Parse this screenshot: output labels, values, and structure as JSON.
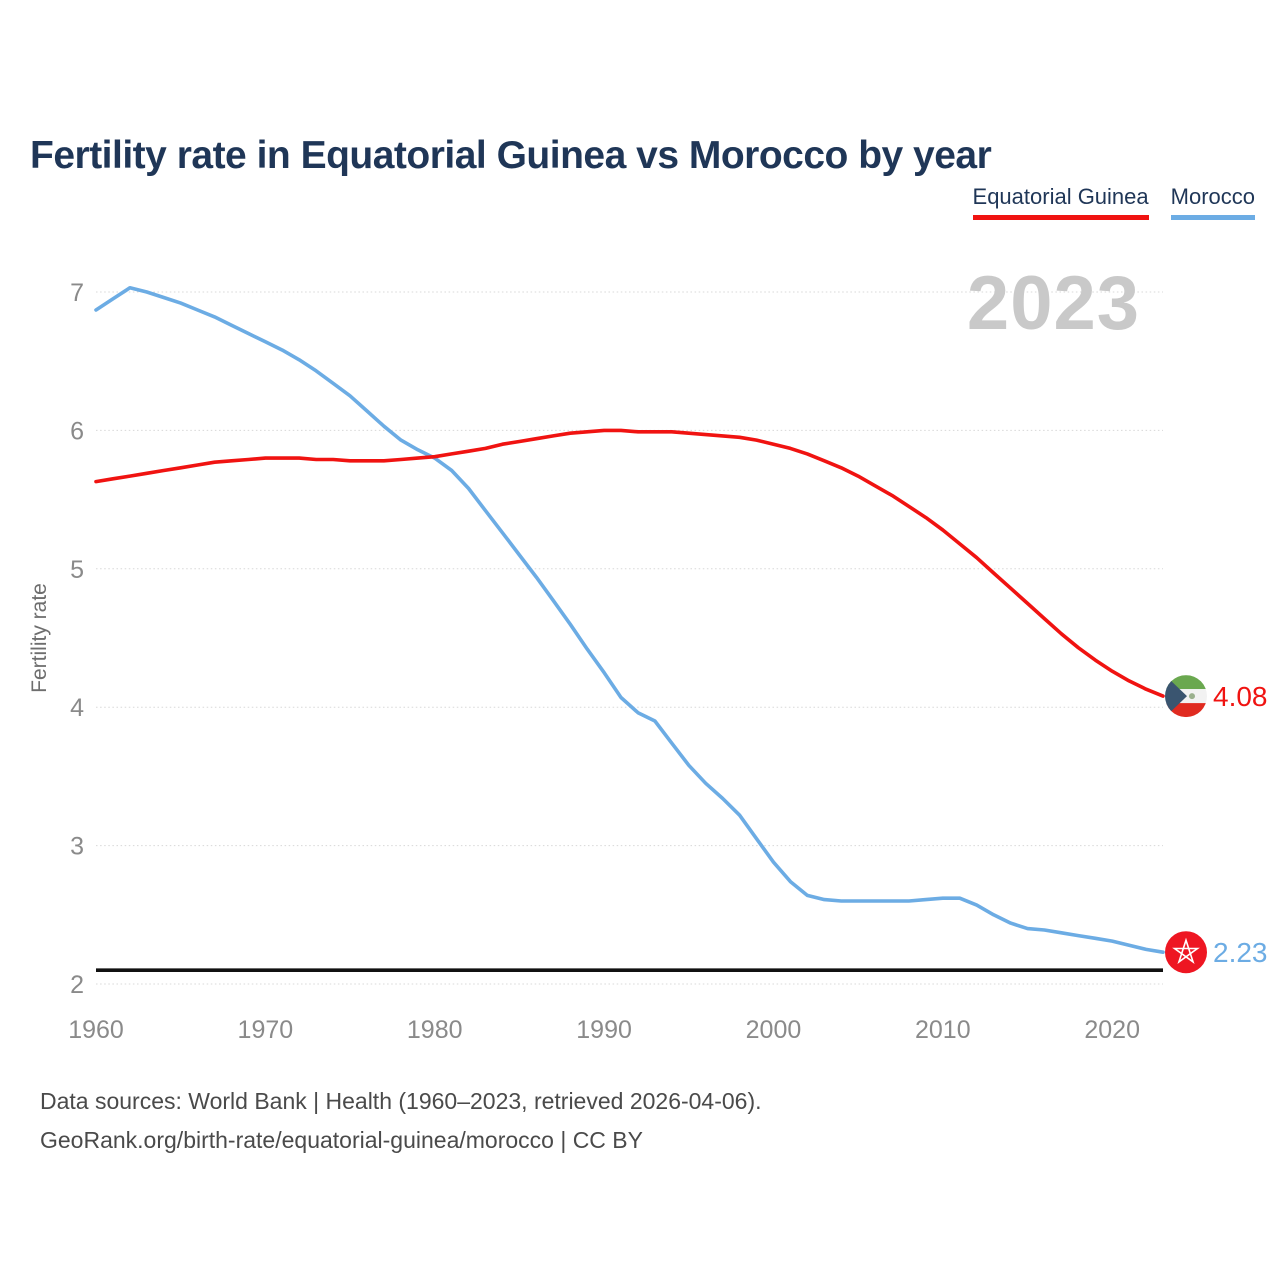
{
  "title": "Fertility rate in Equatorial Guinea vs Morocco by year",
  "watermark": "2023",
  "legend": {
    "items": [
      {
        "label": "Equatorial Guinea",
        "color": "#f01311"
      },
      {
        "label": "Morocco",
        "color": "#6cace4"
      }
    ]
  },
  "chart_data": {
    "type": "line",
    "title": "Fertility rate in Equatorial Guinea vs Morocco by year",
    "xlabel": "",
    "ylabel": "Fertility rate",
    "ylim": [
      2,
      7.2
    ],
    "yticks": [
      2,
      3,
      4,
      5,
      6,
      7
    ],
    "xticks": [
      1960,
      1970,
      1980,
      1990,
      2000,
      2010,
      2020
    ],
    "grid": true,
    "legend_position": "top-right",
    "annotation_year": "2023",
    "reference_line": {
      "value": 2.1,
      "color": "#111111"
    },
    "x": [
      1960,
      1961,
      1962,
      1963,
      1964,
      1965,
      1966,
      1967,
      1968,
      1969,
      1970,
      1971,
      1972,
      1973,
      1974,
      1975,
      1976,
      1977,
      1978,
      1979,
      1980,
      1981,
      1982,
      1983,
      1984,
      1985,
      1986,
      1987,
      1988,
      1989,
      1990,
      1991,
      1992,
      1993,
      1994,
      1995,
      1996,
      1997,
      1998,
      1999,
      2000,
      2001,
      2002,
      2003,
      2004,
      2005,
      2006,
      2007,
      2008,
      2009,
      2010,
      2011,
      2012,
      2013,
      2014,
      2015,
      2016,
      2017,
      2018,
      2019,
      2020,
      2021,
      2022,
      2023
    ],
    "series": [
      {
        "name": "Morocco",
        "color": "#6cace4",
        "end_value": 2.23,
        "end_label": "2.23",
        "flag_icon": "morocco-flag",
        "flag_colors": {
          "red": "#ee1622",
          "star": "#ffffff"
        },
        "values": [
          6.87,
          6.95,
          7.03,
          7.0,
          6.96,
          6.92,
          6.87,
          6.82,
          6.76,
          6.7,
          6.64,
          6.58,
          6.51,
          6.43,
          6.34,
          6.25,
          6.14,
          6.03,
          5.93,
          5.86,
          5.8,
          5.71,
          5.58,
          5.42,
          5.26,
          5.1,
          4.94,
          4.77,
          4.6,
          4.42,
          4.25,
          4.07,
          3.96,
          3.9,
          3.74,
          3.58,
          3.45,
          3.34,
          3.22,
          3.05,
          2.88,
          2.74,
          2.64,
          2.61,
          2.6,
          2.6,
          2.6,
          2.6,
          2.6,
          2.61,
          2.62,
          2.62,
          2.57,
          2.5,
          2.44,
          2.4,
          2.39,
          2.37,
          2.35,
          2.33,
          2.31,
          2.28,
          2.25,
          2.23
        ]
      },
      {
        "name": "Equatorial Guinea",
        "color": "#f01311",
        "end_value": 4.08,
        "end_label": "4.08",
        "flag_icon": "equatorial-guinea-flag",
        "flag_colors": {
          "green": "#6aa84f",
          "white": "#f2f2f2",
          "red": "#e02b20",
          "blue": "#3a5570",
          "emblem": "#9ab08d"
        },
        "values": [
          5.63,
          5.65,
          5.67,
          5.69,
          5.71,
          5.73,
          5.75,
          5.77,
          5.78,
          5.79,
          5.8,
          5.8,
          5.8,
          5.79,
          5.79,
          5.78,
          5.78,
          5.78,
          5.79,
          5.8,
          5.81,
          5.83,
          5.85,
          5.87,
          5.9,
          5.92,
          5.94,
          5.96,
          5.98,
          5.99,
          6.0,
          6.0,
          5.99,
          5.99,
          5.99,
          5.98,
          5.97,
          5.96,
          5.95,
          5.93,
          5.9,
          5.87,
          5.83,
          5.78,
          5.73,
          5.67,
          5.6,
          5.53,
          5.45,
          5.37,
          5.28,
          5.18,
          5.08,
          4.97,
          4.86,
          4.75,
          4.64,
          4.53,
          4.43,
          4.34,
          4.26,
          4.19,
          4.13,
          4.08
        ]
      }
    ]
  },
  "footer": {
    "line1": "Data sources: World Bank | Health (1960–2023, retrieved 2026-04-06).",
    "line2": "GeoRank.org/birth-rate/equatorial-guinea/morocco | CC BY"
  }
}
